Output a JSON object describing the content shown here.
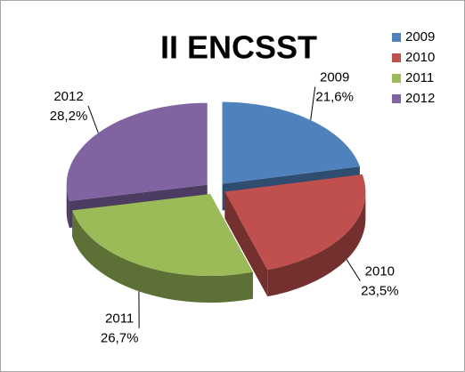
{
  "chart_data": {
    "type": "pie",
    "title": "II ENCSST",
    "categories": [
      "2009",
      "2010",
      "2011",
      "2012"
    ],
    "values": [
      21.6,
      23.5,
      26.7,
      28.2
    ],
    "value_labels": [
      "21,6%",
      "23,5%",
      "26,7%",
      "28,2%"
    ],
    "colors": [
      "#4f81bd",
      "#c0504d",
      "#9bbb59",
      "#8064a2"
    ],
    "legend": "right"
  }
}
